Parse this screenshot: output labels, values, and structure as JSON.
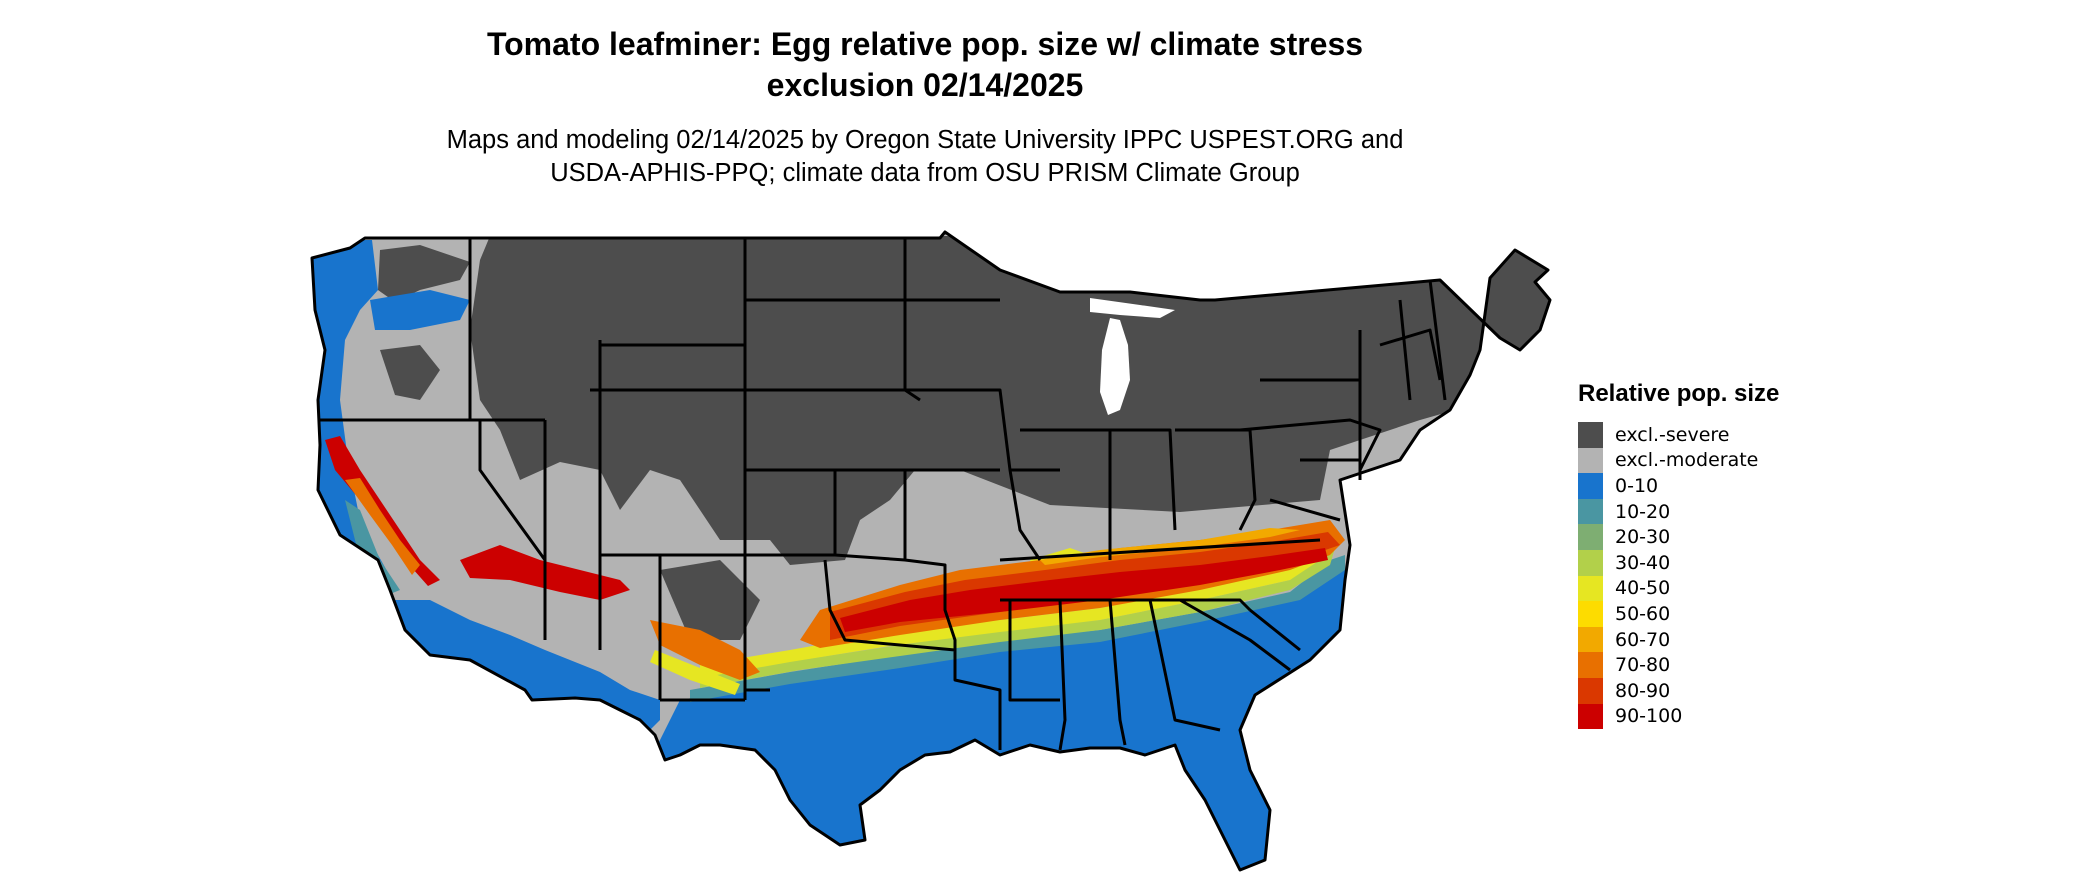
{
  "title": {
    "line1": "Tomato leafminer: Egg relative pop. size w/ climate stress",
    "line2": "exclusion 02/14/2025"
  },
  "subtitle": {
    "line1": "Maps and modeling 02/14/2025 by Oregon State University IPPC USPEST.ORG and",
    "line2": "USDA-APHIS-PPQ; climate data from OSU PRISM Climate Group"
  },
  "legend": {
    "title": "Relative pop. size",
    "items": [
      {
        "label": "excl.-severe",
        "color": "#4d4d4d"
      },
      {
        "label": "excl.-moderate",
        "color": "#b3b3b3"
      },
      {
        "label": "0-10",
        "color": "#1874cd"
      },
      {
        "label": "10-20",
        "color": "#4a96a2"
      },
      {
        "label": "20-30",
        "color": "#7eae72"
      },
      {
        "label": "30-40",
        "color": "#b2d04a"
      },
      {
        "label": "40-50",
        "color": "#e6e622"
      },
      {
        "label": "50-60",
        "color": "#fddc00"
      },
      {
        "label": "60-70",
        "color": "#f2a900"
      },
      {
        "label": "70-80",
        "color": "#e87000"
      },
      {
        "label": "80-90",
        "color": "#da3800"
      },
      {
        "label": "90-100",
        "color": "#cc0000"
      }
    ]
  },
  "map": {
    "region": "Contiguous United States",
    "colors": {
      "excl_severe": "#4d4d4d",
      "excl_moderate": "#b3b3b3",
      "band_0_10": "#1874cd",
      "band_10_20": "#4a96a2",
      "band_30_40": "#b2d04a",
      "band_40_50": "#e6e622",
      "band_60_70": "#f2a900",
      "band_70_80": "#e87000",
      "band_80_90": "#da3800",
      "band_90_100": "#cc0000",
      "state_border": "#000000"
    }
  }
}
